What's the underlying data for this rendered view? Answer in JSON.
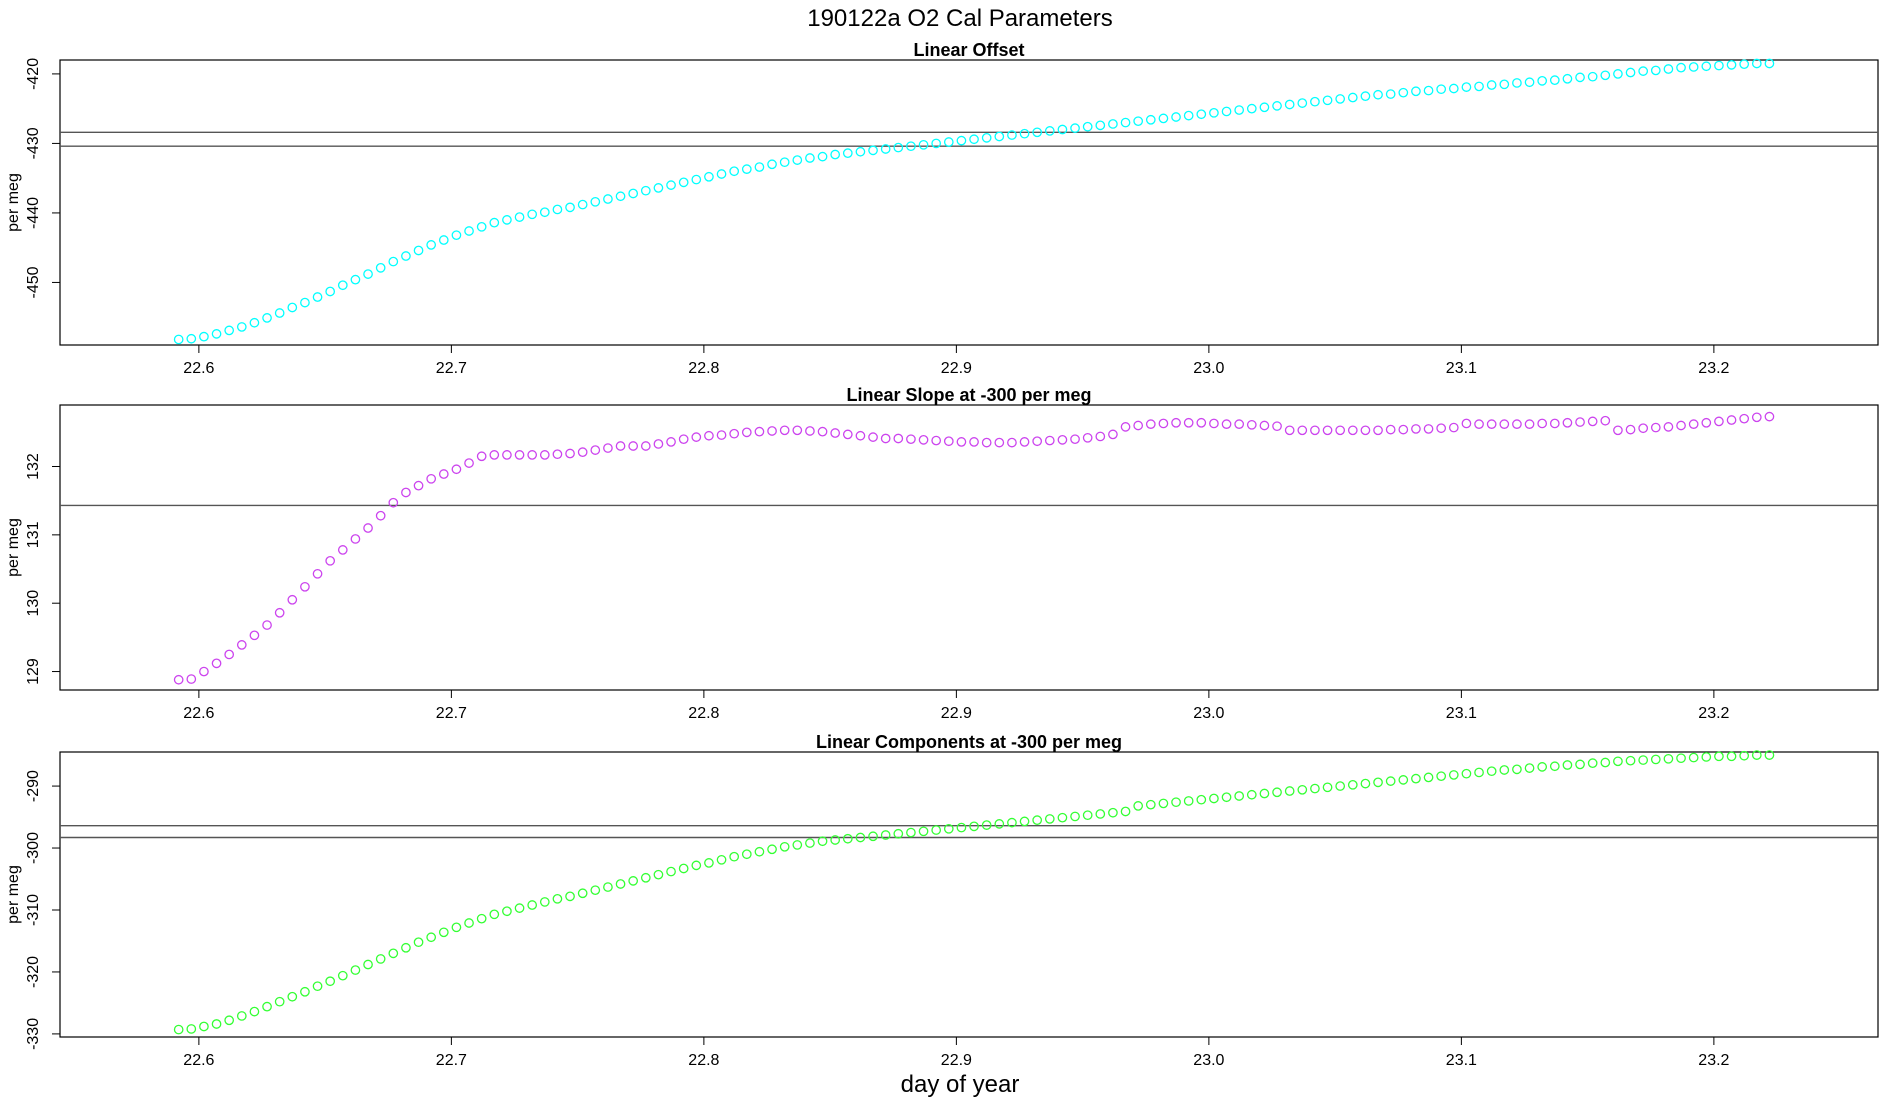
{
  "title": "190122a   O2 Cal Parameters",
  "xlabel": "day of year",
  "colors": {
    "offset": "#00ffff",
    "slope": "#cc44ee",
    "components": "#33ff33",
    "refline": "#555555",
    "frame": "#000000"
  },
  "chart_data": [
    {
      "type": "scatter",
      "title": "Linear Offset",
      "ylabel": "per meg",
      "xlim": [
        22.545,
        23.265
      ],
      "ylim": [
        -459,
        -418
      ],
      "x_ticks": [
        "22.6",
        "22.7",
        "22.8",
        "22.9",
        "23.0",
        "23.1",
        "23.2"
      ],
      "y_ticks": [
        "-420",
        "-430",
        "-440",
        "-450"
      ],
      "hlines": [
        -428.4,
        -430.4
      ],
      "series": [
        {
          "x": [
            22.592,
            22.597,
            22.602,
            22.607,
            22.612,
            22.617,
            22.622,
            22.627,
            22.632,
            22.637,
            22.642,
            22.647,
            22.652,
            22.657,
            22.662,
            22.667,
            22.672,
            22.677,
            22.682,
            22.687,
            22.692,
            22.697,
            22.702,
            22.707,
            22.712,
            22.717,
            22.722,
            22.727,
            22.732,
            22.737,
            22.742,
            22.747,
            22.752,
            22.757,
            22.762,
            22.767,
            22.772,
            22.777,
            22.782,
            22.787,
            22.792,
            22.797,
            22.802,
            22.807,
            22.812,
            22.817,
            22.822,
            22.827,
            22.832,
            22.837,
            22.842,
            22.847,
            22.852,
            22.857,
            22.862,
            22.867,
            22.872,
            22.877,
            22.882,
            22.887,
            22.892,
            22.897,
            22.902,
            22.907,
            22.912,
            22.917,
            22.922,
            22.927,
            22.932,
            22.937,
            22.942,
            22.947,
            22.952,
            22.957,
            22.962,
            22.967,
            22.972,
            22.977,
            22.982,
            22.987,
            22.992,
            22.997,
            23.002,
            23.007,
            23.012,
            23.017,
            23.022,
            23.027,
            23.032,
            23.037,
            23.042,
            23.047,
            23.052,
            23.057,
            23.062,
            23.067,
            23.072,
            23.077,
            23.082,
            23.087,
            23.092,
            23.097,
            23.102,
            23.107,
            23.112,
            23.117,
            23.122,
            23.127,
            23.132,
            23.137,
            23.142,
            23.147,
            23.152,
            23.157,
            23.162,
            23.167,
            23.172,
            23.177,
            23.182,
            23.187,
            23.192,
            23.197,
            23.202,
            23.207,
            23.212,
            23.217,
            23.222
          ],
          "y": [
            -458.2,
            -458.1,
            -457.8,
            -457.4,
            -456.9,
            -456.4,
            -455.8,
            -455.1,
            -454.4,
            -453.6,
            -452.9,
            -452.1,
            -451.3,
            -450.4,
            -449.6,
            -448.8,
            -447.9,
            -447.0,
            -446.2,
            -445.4,
            -444.6,
            -443.9,
            -443.2,
            -442.6,
            -442.0,
            -441.4,
            -441.0,
            -440.6,
            -440.2,
            -439.9,
            -439.5,
            -439.2,
            -438.8,
            -438.4,
            -438.0,
            -437.6,
            -437.2,
            -436.8,
            -436.4,
            -436.0,
            -435.6,
            -435.2,
            -434.8,
            -434.4,
            -434.0,
            -433.7,
            -433.4,
            -433.0,
            -432.7,
            -432.4,
            -432.1,
            -431.9,
            -431.6,
            -431.4,
            -431.2,
            -431.0,
            -430.8,
            -430.6,
            -430.4,
            -430.2,
            -430.0,
            -429.8,
            -429.6,
            -429.4,
            -429.2,
            -429.0,
            -428.8,
            -428.6,
            -428.4,
            -428.2,
            -428.0,
            -427.8,
            -427.6,
            -427.4,
            -427.2,
            -427.0,
            -426.8,
            -426.6,
            -426.4,
            -426.2,
            -426.0,
            -425.8,
            -425.6,
            -425.4,
            -425.2,
            -425.0,
            -424.8,
            -424.6,
            -424.4,
            -424.2,
            -424.0,
            -423.8,
            -423.6,
            -423.4,
            -423.2,
            -423.0,
            -422.9,
            -422.7,
            -422.5,
            -422.4,
            -422.2,
            -422.1,
            -421.9,
            -421.8,
            -421.6,
            -421.5,
            -421.3,
            -421.2,
            -421.0,
            -420.9,
            -420.7,
            -420.5,
            -420.4,
            -420.2,
            -420.0,
            -419.8,
            -419.6,
            -419.5,
            -419.3,
            -419.1,
            -419.0,
            -418.9,
            -418.8,
            -418.7,
            -418.6,
            -418.5,
            -418.5
          ]
        }
      ]
    },
    {
      "type": "scatter",
      "title": "Linear Slope at -300 per meg",
      "ylabel": "per meg",
      "xlim": [
        22.545,
        23.265
      ],
      "ylim": [
        128.73,
        132.9
      ],
      "x_ticks": [
        "22.6",
        "22.7",
        "22.8",
        "22.9",
        "23.0",
        "23.1",
        "23.2"
      ],
      "y_ticks": [
        "129",
        "130",
        "131",
        "132"
      ],
      "hlines": [
        131.43
      ],
      "series": [
        {
          "x": [
            22.592,
            22.597,
            22.602,
            22.607,
            22.612,
            22.617,
            22.622,
            22.627,
            22.632,
            22.637,
            22.642,
            22.647,
            22.652,
            22.657,
            22.662,
            22.667,
            22.672,
            22.677,
            22.682,
            22.687,
            22.692,
            22.697,
            22.702,
            22.707,
            22.712,
            22.717,
            22.722,
            22.727,
            22.732,
            22.737,
            22.742,
            22.747,
            22.752,
            22.757,
            22.762,
            22.767,
            22.772,
            22.777,
            22.782,
            22.787,
            22.792,
            22.797,
            22.802,
            22.807,
            22.812,
            22.817,
            22.822,
            22.827,
            22.832,
            22.837,
            22.842,
            22.847,
            22.852,
            22.857,
            22.862,
            22.867,
            22.872,
            22.877,
            22.882,
            22.887,
            22.892,
            22.897,
            22.902,
            22.907,
            22.912,
            22.917,
            22.922,
            22.927,
            22.932,
            22.937,
            22.942,
            22.947,
            22.952,
            22.957,
            22.962,
            22.967,
            22.972,
            22.977,
            22.982,
            22.987,
            22.992,
            22.997,
            23.002,
            23.007,
            23.012,
            23.017,
            23.022,
            23.027,
            23.032,
            23.037,
            23.042,
            23.047,
            23.052,
            23.057,
            23.062,
            23.067,
            23.072,
            23.077,
            23.082,
            23.087,
            23.092,
            23.097,
            23.102,
            23.107,
            23.112,
            23.117,
            23.122,
            23.127,
            23.132,
            23.137,
            23.142,
            23.147,
            23.152,
            23.157,
            23.162,
            23.167,
            23.172,
            23.177,
            23.182,
            23.187,
            23.192,
            23.197,
            23.202,
            23.207,
            23.212,
            23.217,
            23.222
          ],
          "y": [
            128.88,
            128.89,
            129.0,
            129.12,
            129.25,
            129.39,
            129.53,
            129.68,
            129.86,
            130.05,
            130.24,
            130.43,
            130.62,
            130.78,
            130.94,
            131.1,
            131.28,
            131.47,
            131.62,
            131.72,
            131.82,
            131.89,
            131.96,
            132.05,
            132.15,
            132.17,
            132.17,
            132.17,
            132.17,
            132.17,
            132.18,
            132.19,
            132.21,
            132.24,
            132.27,
            132.3,
            132.3,
            132.3,
            132.33,
            132.36,
            132.4,
            132.43,
            132.45,
            132.46,
            132.48,
            132.5,
            132.51,
            132.52,
            132.53,
            132.53,
            132.52,
            132.51,
            132.49,
            132.47,
            132.45,
            132.43,
            132.41,
            132.41,
            132.4,
            132.39,
            132.38,
            132.37,
            132.36,
            132.36,
            132.35,
            132.35,
            132.35,
            132.36,
            132.37,
            132.38,
            132.39,
            132.4,
            132.42,
            132.44,
            132.47,
            132.58,
            132.6,
            132.62,
            132.63,
            132.64,
            132.64,
            132.64,
            132.63,
            132.62,
            132.62,
            132.61,
            132.6,
            132.59,
            132.53,
            132.53,
            132.53,
            132.53,
            132.53,
            132.53,
            132.53,
            132.53,
            132.54,
            132.54,
            132.55,
            132.55,
            132.56,
            132.57,
            132.63,
            132.62,
            132.62,
            132.62,
            132.62,
            132.62,
            132.63,
            132.63,
            132.64,
            132.65,
            132.66,
            132.67,
            132.53,
            132.54,
            132.56,
            132.57,
            132.58,
            132.6,
            132.62,
            132.64,
            132.66,
            132.68,
            132.7,
            132.72,
            132.73
          ]
        }
      ]
    },
    {
      "type": "scatter",
      "title": "Linear Components at -300 per meg",
      "ylabel": "per meg",
      "xlim": [
        22.545,
        23.265
      ],
      "ylim": [
        -330.5,
        -284.5
      ],
      "x_ticks": [
        "22.6",
        "22.7",
        "22.8",
        "22.9",
        "23.0",
        "23.1",
        "23.2"
      ],
      "y_ticks": [
        "-290",
        "-300",
        "-310",
        "-320",
        "-330"
      ],
      "hlines": [
        -296.4,
        -298.3
      ],
      "series": [
        {
          "x": [
            22.592,
            22.597,
            22.602,
            22.607,
            22.612,
            22.617,
            22.622,
            22.627,
            22.632,
            22.637,
            22.642,
            22.647,
            22.652,
            22.657,
            22.662,
            22.667,
            22.672,
            22.677,
            22.682,
            22.687,
            22.692,
            22.697,
            22.702,
            22.707,
            22.712,
            22.717,
            22.722,
            22.727,
            22.732,
            22.737,
            22.742,
            22.747,
            22.752,
            22.757,
            22.762,
            22.767,
            22.772,
            22.777,
            22.782,
            22.787,
            22.792,
            22.797,
            22.802,
            22.807,
            22.812,
            22.817,
            22.822,
            22.827,
            22.832,
            22.837,
            22.842,
            22.847,
            22.852,
            22.857,
            22.862,
            22.867,
            22.872,
            22.877,
            22.882,
            22.887,
            22.892,
            22.897,
            22.902,
            22.907,
            22.912,
            22.917,
            22.922,
            22.927,
            22.932,
            22.937,
            22.942,
            22.947,
            22.952,
            22.957,
            22.962,
            22.967,
            22.972,
            22.977,
            22.982,
            22.987,
            22.992,
            22.997,
            23.002,
            23.007,
            23.012,
            23.017,
            23.022,
            23.027,
            23.032,
            23.037,
            23.042,
            23.047,
            23.052,
            23.057,
            23.062,
            23.067,
            23.072,
            23.077,
            23.082,
            23.087,
            23.092,
            23.097,
            23.102,
            23.107,
            23.112,
            23.117,
            23.122,
            23.127,
            23.132,
            23.137,
            23.142,
            23.147,
            23.152,
            23.157,
            23.162,
            23.167,
            23.172,
            23.177,
            23.182,
            23.187,
            23.192,
            23.197,
            23.202,
            23.207,
            23.212,
            23.217,
            23.222
          ],
          "y": [
            -329.3,
            -329.2,
            -328.8,
            -328.4,
            -327.8,
            -327.1,
            -326.4,
            -325.6,
            -324.8,
            -324.0,
            -323.2,
            -322.3,
            -321.5,
            -320.6,
            -319.7,
            -318.8,
            -317.9,
            -317.0,
            -316.1,
            -315.2,
            -314.4,
            -313.6,
            -312.8,
            -312.1,
            -311.4,
            -310.7,
            -310.2,
            -309.7,
            -309.2,
            -308.7,
            -308.2,
            -307.8,
            -307.3,
            -306.8,
            -306.3,
            -305.8,
            -305.3,
            -304.8,
            -304.3,
            -303.8,
            -303.3,
            -302.8,
            -302.4,
            -301.9,
            -301.4,
            -301.0,
            -300.6,
            -300.2,
            -299.8,
            -299.5,
            -299.2,
            -298.9,
            -298.7,
            -298.5,
            -298.3,
            -298.1,
            -297.9,
            -297.7,
            -297.5,
            -297.3,
            -297.1,
            -296.9,
            -296.7,
            -296.5,
            -296.3,
            -296.1,
            -295.9,
            -295.7,
            -295.5,
            -295.3,
            -295.1,
            -294.9,
            -294.7,
            -294.5,
            -294.3,
            -294.1,
            -293.2,
            -293.0,
            -292.8,
            -292.6,
            -292.4,
            -292.2,
            -292.0,
            -291.8,
            -291.6,
            -291.4,
            -291.2,
            -291.0,
            -290.8,
            -290.6,
            -290.4,
            -290.2,
            -290.0,
            -289.8,
            -289.6,
            -289.4,
            -289.2,
            -289.0,
            -288.8,
            -288.6,
            -288.4,
            -288.2,
            -288.0,
            -287.8,
            -287.6,
            -287.4,
            -287.3,
            -287.1,
            -286.9,
            -286.8,
            -286.6,
            -286.5,
            -286.3,
            -286.2,
            -286.0,
            -285.9,
            -285.8,
            -285.7,
            -285.6,
            -285.5,
            -285.4,
            -285.3,
            -285.2,
            -285.2,
            -285.1,
            -285.0,
            -285.0
          ]
        }
      ]
    }
  ]
}
